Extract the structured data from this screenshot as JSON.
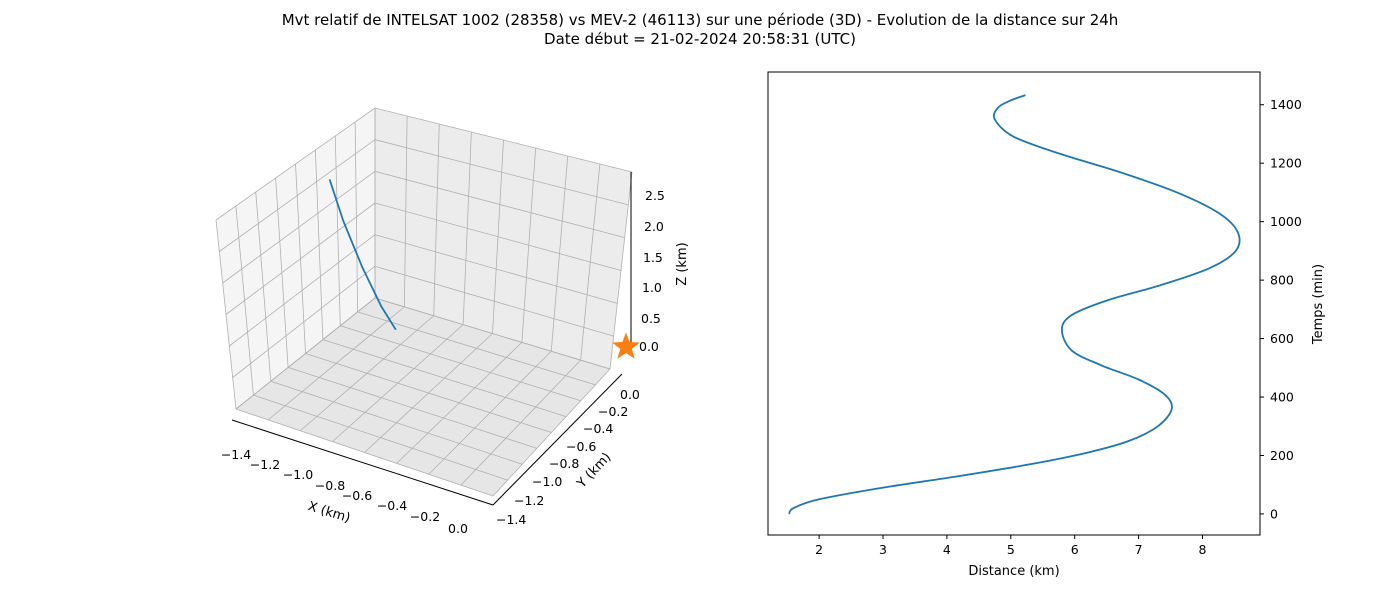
{
  "figure": {
    "title_line1": "Mvt relatif de INTELSAT 1002 (28358) vs MEV-2 (46113) sur une période (3D) - Evolution de la distance sur 24h",
    "title_line2": "Date début = 21-02-2024 20:58:31 (UTC)"
  },
  "colors": {
    "series": "#1f77b4",
    "marker": "#ff7f0e",
    "grid": "#b0b0b0",
    "pane": "#f2f2f2"
  },
  "chart_data": [
    {
      "type": "line3d",
      "xlabel": "X (km)",
      "ylabel": "Y (km)",
      "zlabel": "Z (km)",
      "xticks": [
        "−1.4",
        "−1.2",
        "−1.0",
        "−0.8",
        "−0.6",
        "−0.4",
        "−0.2",
        "0.0"
      ],
      "yticks": [
        "0.0",
        "−0.2",
        "−0.4",
        "−0.6",
        "−0.8",
        "−1.0",
        "−1.2",
        "−1.4"
      ],
      "zticks": [
        "0.0",
        "0.5",
        "1.0",
        "1.5",
        "2.0",
        "2.5"
      ],
      "xlim": [
        -1.5,
        0.1
      ],
      "ylim": [
        -1.5,
        0.1
      ],
      "zlim": [
        -0.2,
        2.8
      ],
      "grid": true,
      "series": [
        {
          "kind": "line",
          "color": "#1f77b4",
          "points": [
            [
              -1.48,
              -0.37,
              1.93
            ],
            [
              -1.38,
              -0.42,
              1.4
            ],
            [
              -1.25,
              -0.47,
              0.82
            ],
            [
              -1.12,
              -0.52,
              0.36
            ],
            [
              -1.02,
              -0.56,
              0.12
            ]
          ]
        },
        {
          "kind": "star-marker",
          "color": "#ff7f0e",
          "points": [
            [
              0.0,
              0.0,
              0.0
            ]
          ]
        }
      ]
    },
    {
      "type": "line",
      "xlabel": "Distance (km)",
      "ylabel": "Temps (min)",
      "xticks": [
        "2",
        "3",
        "4",
        "5",
        "6",
        "7",
        "8"
      ],
      "yticks": [
        "0",
        "200",
        "400",
        "600",
        "800",
        "1000",
        "1200",
        "1400"
      ],
      "xlim": [
        1.2,
        8.9
      ],
      "ylim": [
        -72,
        1512
      ],
      "grid": false,
      "series": [
        {
          "color": "#1f77b4",
          "x": [
            1.53,
            1.6,
            2.0,
            3.0,
            4.2,
            5.3,
            6.2,
            6.85,
            7.3,
            7.52,
            7.4,
            7.0,
            6.4,
            5.95,
            5.8,
            5.95,
            6.5,
            7.3,
            8.1,
            8.52,
            8.55,
            8.25,
            7.6,
            6.7,
            5.8,
            5.05,
            4.75,
            4.8,
            5.0,
            5.23
          ],
          "y": [
            0,
            20,
            50,
            90,
            130,
            170,
            210,
            250,
            300,
            360,
            410,
            460,
            510,
            560,
            630,
            680,
            730,
            780,
            840,
            900,
            965,
            1030,
            1100,
            1170,
            1230,
            1290,
            1350,
            1390,
            1415,
            1433
          ]
        }
      ]
    }
  ]
}
